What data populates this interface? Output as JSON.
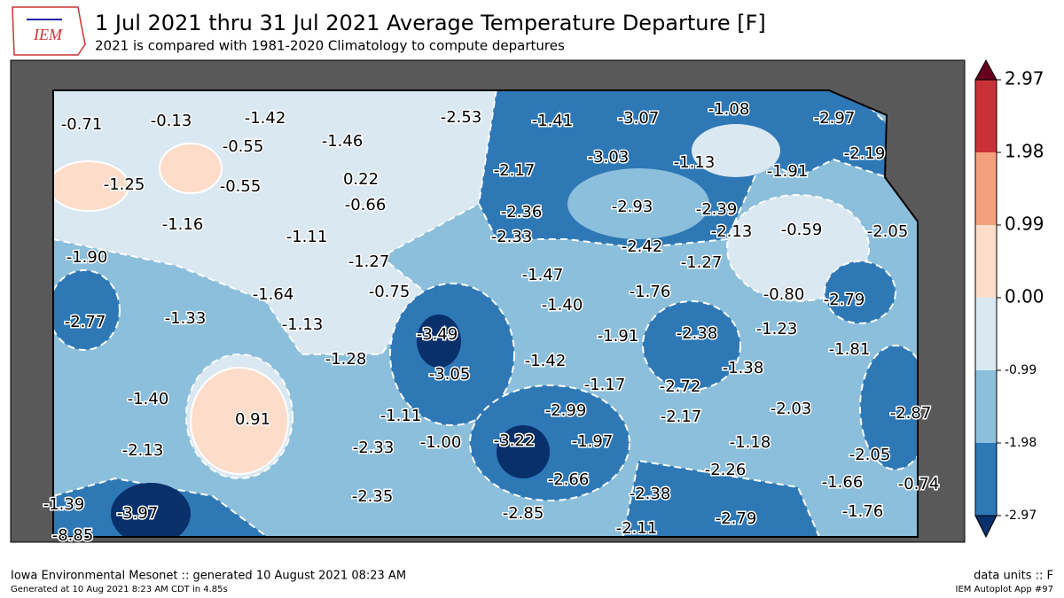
{
  "title": "1 Jul 2021 thru 31 Jul 2021 Average Temperature Departure [F]",
  "subtitle": "2021 is compared with 1981-2020 Climatology to compute departures",
  "logo": "IEM",
  "stations": [
    "-0.71",
    "-0.13",
    "-1.42",
    "-0.55",
    "-1.46",
    "-2.53",
    "-1.41",
    "-3.07",
    "-1.08",
    "-2.97",
    "-1.25",
    "-0.55",
    "0.22",
    "-0.66",
    "-2.17",
    "-3.03",
    "-1.13",
    "-1.91",
    "-2.19",
    "-1.16",
    "-2.36",
    "-2.33",
    "-2.93",
    "-2.39",
    "-1.11",
    "-2.42",
    "-2.13",
    "-0.59",
    "-2.05",
    "-1.90",
    "-1.27",
    "-1.27",
    "-1.47",
    "-1.64",
    "-0.75",
    "-1.76",
    "-0.80",
    "-2.79",
    "-1.40",
    "-2.77",
    "-1.33",
    "-1.13",
    "-3.49",
    "-1.91",
    "-2.38",
    "-1.23",
    "-1.81",
    "-1.28",
    "-1.42",
    "-3.05",
    "-1.38",
    "-1.17",
    "-2.72",
    "-1.40",
    "0.91",
    "-1.11",
    "-2.99",
    "-2.17",
    "-2.03",
    "-2.87",
    "-2.33",
    "-1.00",
    "-3.22",
    "-1.97",
    "-1.18",
    "-2.13",
    "-2.05",
    "-2.26",
    "-2.66",
    "-1.66",
    "-0.74",
    "-2.38",
    "-2.35",
    "-1.39",
    "-3.97",
    "-2.85",
    "-2.79",
    "-1.76",
    "-2.11",
    "-8.85"
  ],
  "colorbar": {
    "ticks": [
      "2.97",
      "1.98",
      "0.99",
      "0.00",
      "-0.99",
      "-1.98",
      "-2.97"
    ],
    "colors": [
      "#c83237",
      "#f4a07e",
      "#fddcc9",
      "#dae8f2",
      "#8bbfdc",
      "#2e78b6"
    ],
    "over": "#67001f",
    "under": "#08306b"
  },
  "footer": {
    "left": "Iowa Environmental Mesonet :: generated 10 August 2021 08:23 AM",
    "small": "Generated at 10 Aug 2021 8:23 AM CDT in 4.85s",
    "units": "data units :: F",
    "app": "IEM Autoplot App #97"
  }
}
